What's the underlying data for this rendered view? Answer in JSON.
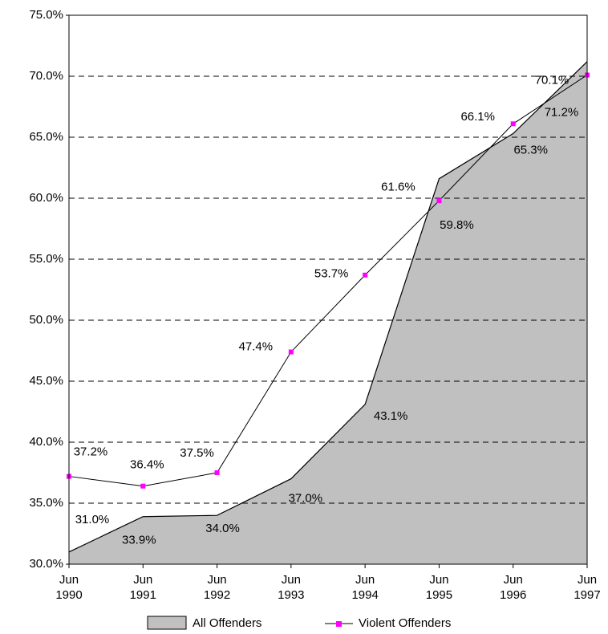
{
  "chart_data": {
    "type": "combo",
    "categories": [
      "Jun 1990",
      "Jun 1991",
      "Jun 1992",
      "Jun 1993",
      "Jun 1994",
      "Jun 1995",
      "Jun 1996",
      "Jun 1997"
    ],
    "series": [
      {
        "name": "All Offenders",
        "type": "area",
        "color": "#c0c0c0",
        "values": [
          31.0,
          33.9,
          34.0,
          37.0,
          43.1,
          61.6,
          65.3,
          71.2
        ],
        "value_labels": [
          "31.0%",
          "33.9%",
          "34.0%",
          "37.0%",
          "43.1%",
          "61.6%",
          "65.3%",
          "71.2%"
        ]
      },
      {
        "name": "Violent Offenders",
        "type": "line",
        "color": "#ff00ff",
        "values": [
          37.2,
          36.4,
          37.5,
          47.4,
          53.7,
          59.8,
          66.1,
          70.1
        ],
        "value_labels": [
          "37.2%",
          "36.4%",
          "37.5%",
          "47.4%",
          "53.7%",
          "59.8%",
          "66.1%",
          "70.1%"
        ]
      }
    ],
    "ylim": [
      30,
      75
    ],
    "yticks": [
      {
        "value": 30,
        "label": "30.0%"
      },
      {
        "value": 35,
        "label": "35.0%"
      },
      {
        "value": 40,
        "label": "40.0%"
      },
      {
        "value": 45,
        "label": "45.0%"
      },
      {
        "value": 50,
        "label": "50.0%"
      },
      {
        "value": 55,
        "label": "55.0%"
      },
      {
        "value": 60,
        "label": "60.0%"
      },
      {
        "value": 65,
        "label": "65.0%"
      },
      {
        "value": 70,
        "label": "70.0%"
      },
      {
        "value": 75,
        "label": "75.0%"
      }
    ],
    "grid": true,
    "legend": "bottom"
  }
}
